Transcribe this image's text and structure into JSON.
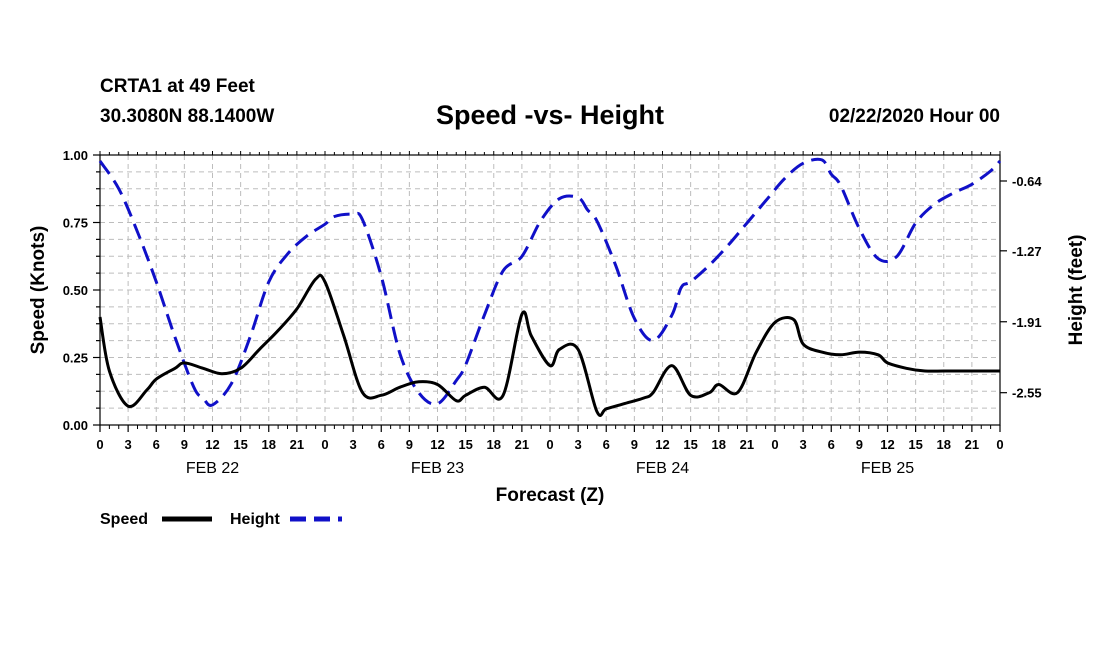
{
  "header": {
    "station": "CRTA1 at 49 Feet",
    "coords": "30.3080N 88.1400W",
    "title": "Speed -vs- Height",
    "run": "02/22/2020 Hour 00"
  },
  "colors": {
    "speed": "#000000",
    "height": "#1010c8",
    "grid": "#bdbdbd"
  },
  "chart_data": {
    "type": "line",
    "title": "Speed -vs- Height",
    "xlabel": "Forecast (Z)",
    "ylabel": "Speed (Knots)",
    "y2label": "Height (feet)",
    "xlim": [
      0,
      96
    ],
    "ylim": [
      0,
      1.0
    ],
    "y2lim": [
      -2.8415,
      -0.4055
    ],
    "x_ticks": [
      0,
      3,
      6,
      9,
      12,
      15,
      18,
      21,
      24,
      27,
      30,
      33,
      36,
      39,
      42,
      45,
      48,
      51,
      54,
      57,
      60,
      63,
      66,
      69,
      72,
      75,
      78,
      81,
      84,
      87,
      90,
      93,
      96
    ],
    "x_tick_labels": [
      "0",
      "3",
      "6",
      "9",
      "12",
      "15",
      "18",
      "21",
      "0",
      "3",
      "6",
      "9",
      "12",
      "15",
      "18",
      "21",
      "0",
      "3",
      "6",
      "9",
      "12",
      "15",
      "18",
      "21",
      "0",
      "3",
      "6",
      "9",
      "12",
      "15",
      "18",
      "21",
      "0"
    ],
    "y_ticks": [
      "0.00",
      "0.25",
      "0.50",
      "0.75",
      "1.00"
    ],
    "y2_ticks": [
      "-0.64",
      "-1.27",
      "-1.91",
      "-2.55"
    ],
    "day_labels": [
      {
        "label": "FEB 22",
        "x": 12
      },
      {
        "label": "FEB 23",
        "x": 36
      },
      {
        "label": "FEB 24",
        "x": 60
      },
      {
        "label": "FEB 25",
        "x": 84
      }
    ],
    "legend": {
      "speed": "Speed",
      "height": "Height"
    },
    "series": [
      {
        "name": "Speed",
        "axis": "left",
        "style": "solid",
        "x": [
          0,
          1,
          3,
          5,
          6,
          8,
          9,
          11,
          13,
          15,
          17,
          19,
          21,
          23,
          24,
          26,
          28,
          30,
          32,
          34,
          36,
          38,
          39,
          41,
          43,
          45,
          46,
          48,
          49,
          51,
          53,
          54,
          56,
          58,
          59,
          61,
          63,
          65,
          66,
          68,
          70,
          72,
          74,
          75,
          77,
          79,
          81,
          83,
          84,
          86,
          88,
          90,
          92,
          94,
          96
        ],
        "values": [
          0.4,
          0.2,
          0.07,
          0.13,
          0.17,
          0.21,
          0.23,
          0.21,
          0.19,
          0.21,
          0.28,
          0.35,
          0.43,
          0.54,
          0.53,
          0.33,
          0.12,
          0.11,
          0.14,
          0.16,
          0.15,
          0.09,
          0.11,
          0.14,
          0.11,
          0.41,
          0.33,
          0.22,
          0.28,
          0.28,
          0.05,
          0.06,
          0.08,
          0.1,
          0.12,
          0.22,
          0.11,
          0.12,
          0.15,
          0.12,
          0.27,
          0.38,
          0.39,
          0.3,
          0.27,
          0.26,
          0.27,
          0.26,
          0.23,
          0.21,
          0.2,
          0.2,
          0.2,
          0.2,
          0.2
        ]
      },
      {
        "name": "Height",
        "axis": "right",
        "style": "dashed",
        "x": [
          0,
          2,
          4,
          6,
          8,
          10,
          11,
          12,
          14,
          16,
          18,
          20,
          22,
          24,
          25,
          27,
          28,
          30,
          32,
          34,
          36,
          38,
          39,
          41,
          43,
          45,
          47,
          49,
          51,
          52,
          53,
          55,
          57,
          59,
          61,
          62,
          63,
          65,
          67,
          69,
          71,
          73,
          75,
          77,
          78,
          79,
          81,
          83,
          85,
          87,
          89,
          91,
          93,
          95,
          96
        ],
        "values": [
          -0.46,
          -0.71,
          -1.1,
          -1.55,
          -2.05,
          -2.5,
          -2.6,
          -2.66,
          -2.47,
          -2.05,
          -1.55,
          -1.3,
          -1.14,
          -1.03,
          -0.96,
          -0.94,
          -0.99,
          -1.5,
          -2.2,
          -2.55,
          -2.65,
          -2.44,
          -2.3,
          -1.85,
          -1.45,
          -1.32,
          -1.0,
          -0.8,
          -0.79,
          -0.9,
          -1.0,
          -1.4,
          -1.88,
          -2.08,
          -1.85,
          -1.6,
          -1.55,
          -1.4,
          -1.22,
          -1.02,
          -0.82,
          -0.62,
          -0.48,
          -0.45,
          -0.58,
          -0.68,
          -1.07,
          -1.34,
          -1.32,
          -1.02,
          -0.85,
          -0.75,
          -0.67,
          -0.55,
          -0.46
        ]
      }
    ]
  }
}
